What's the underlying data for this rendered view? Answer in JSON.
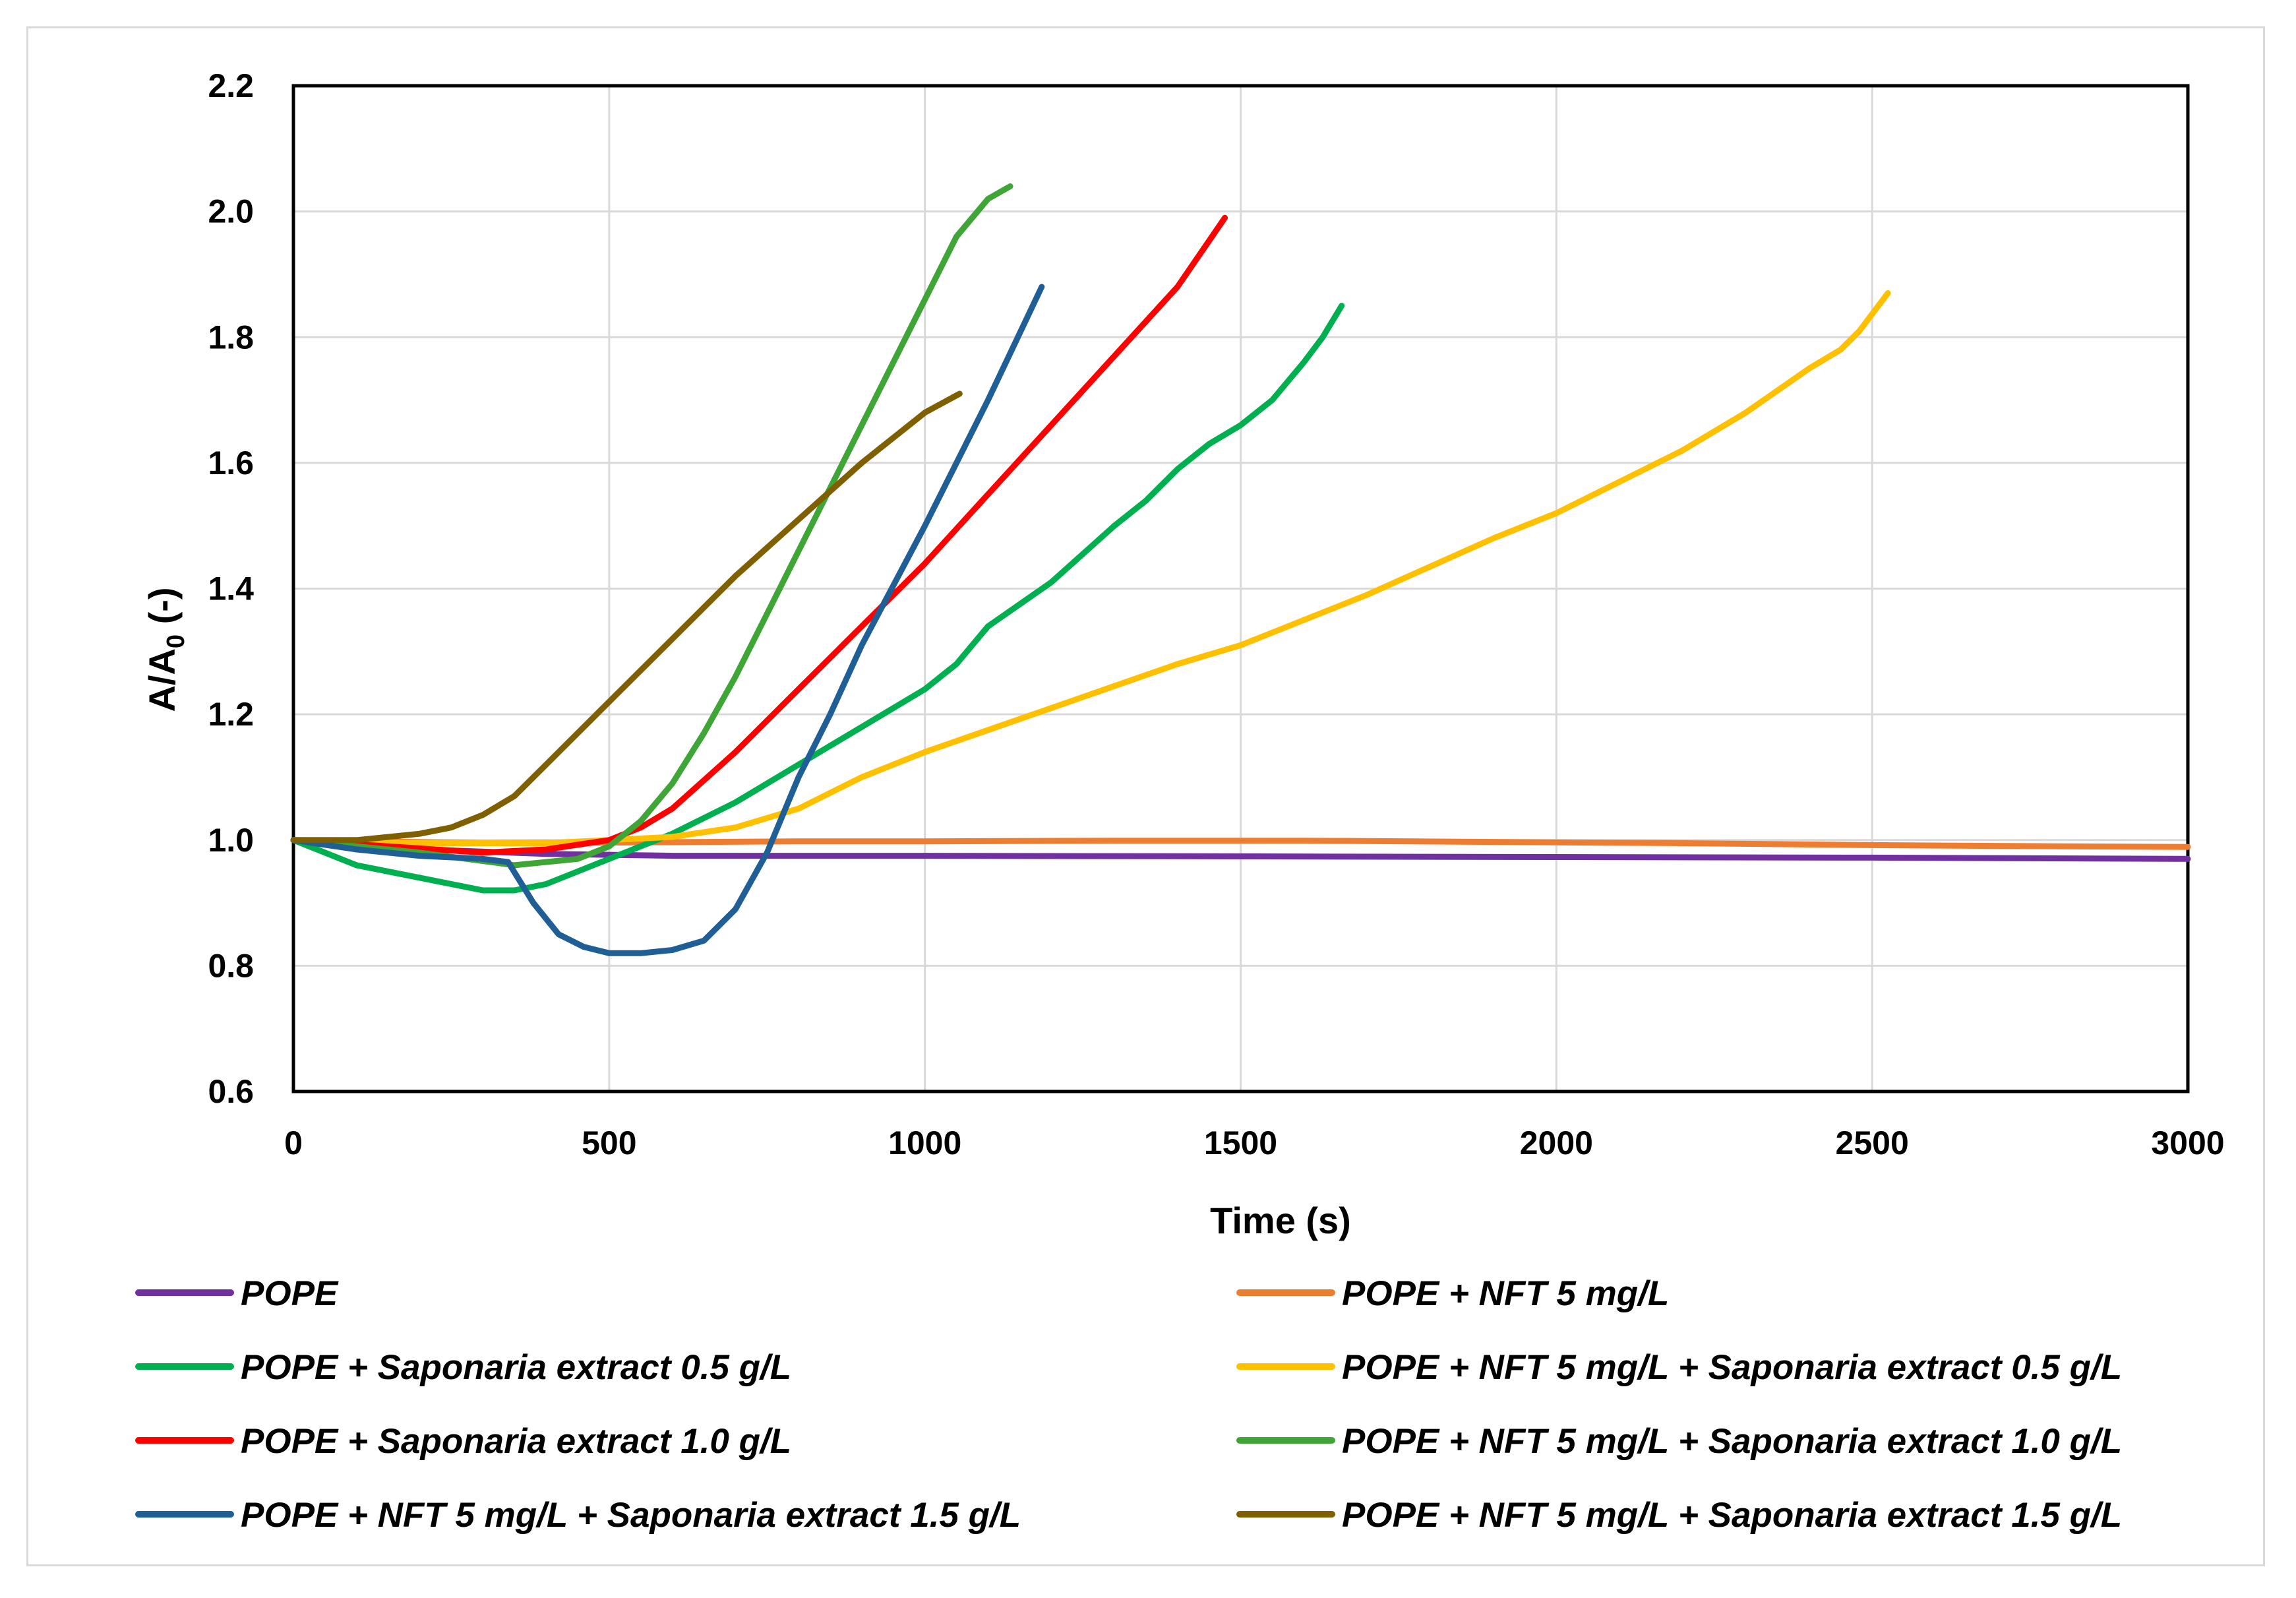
{
  "chart_data": {
    "type": "line",
    "title": "",
    "xlabel": "Time (s)",
    "ylabel_main": "A/A",
    "ylabel_sub": "0",
    "ylabel_suffix": " (-)",
    "xlim": [
      0,
      3000
    ],
    "ylim": [
      0.6,
      2.2
    ],
    "xticks": [
      0,
      500,
      1000,
      1500,
      2000,
      2500,
      3000
    ],
    "xtick_labels": [
      "0",
      "500",
      "1000",
      "1500",
      "2000",
      "2500",
      "3000"
    ],
    "yticks": [
      0.6,
      0.8,
      1.0,
      1.2,
      1.4,
      1.6,
      1.8,
      2.0,
      2.2
    ],
    "ytick_labels": [
      "0.6",
      "0.8",
      "1.0",
      "1.2",
      "1.4",
      "1.6",
      "1.8",
      "2.0",
      "2.2"
    ],
    "grid": true,
    "legend_position": "bottom",
    "series": [
      {
        "name": "POPE",
        "color": "#7030A0",
        "x": [
          0,
          200,
          400,
          600,
          1000,
          1500,
          2000,
          2500,
          3000
        ],
        "y": [
          1.0,
          0.985,
          0.978,
          0.975,
          0.975,
          0.974,
          0.973,
          0.972,
          0.97
        ]
      },
      {
        "name": "POPE + NFT 5 mg/L",
        "color": "#ED7D31",
        "x": [
          0,
          300,
          500,
          800,
          1000,
          1300,
          1600,
          1900,
          2200,
          2500,
          2800,
          3000
        ],
        "y": [
          1.0,
          0.995,
          0.996,
          0.998,
          0.998,
          0.999,
          0.999,
          0.997,
          0.995,
          0.992,
          0.99,
          0.989
        ]
      },
      {
        "name": "POPE + Saponaria extract 0.5 g/L",
        "color": "#00B050",
        "x": [
          0,
          100,
          200,
          300,
          350,
          400,
          500,
          600,
          700,
          800,
          900,
          1000,
          1050,
          1100,
          1200,
          1300,
          1350,
          1400,
          1450,
          1500,
          1550,
          1600,
          1630,
          1660
        ],
        "y": [
          1.0,
          0.96,
          0.94,
          0.92,
          0.92,
          0.93,
          0.97,
          1.01,
          1.06,
          1.12,
          1.18,
          1.24,
          1.28,
          1.34,
          1.41,
          1.5,
          1.54,
          1.59,
          1.63,
          1.66,
          1.7,
          1.76,
          1.8,
          1.85
        ]
      },
      {
        "name": "POPE + NFT 5 mg/L + Saponaria extract 0.5 g/L",
        "color": "#FFC000",
        "x": [
          0,
          200,
          400,
          600,
          700,
          800,
          900,
          1000,
          1200,
          1400,
          1500,
          1700,
          1900,
          2000,
          2100,
          2200,
          2300,
          2400,
          2450,
          2480,
          2525
        ],
        "y": [
          1.0,
          0.995,
          0.995,
          1.005,
          1.02,
          1.05,
          1.1,
          1.14,
          1.21,
          1.28,
          1.31,
          1.39,
          1.48,
          1.52,
          1.57,
          1.62,
          1.68,
          1.75,
          1.78,
          1.81,
          1.87
        ]
      },
      {
        "name": "POPE + Saponaria extract 1.0 g/L",
        "color": "#FF0000",
        "x": [
          0,
          300,
          400,
          500,
          550,
          600,
          700,
          800,
          900,
          1000,
          1100,
          1200,
          1300,
          1400,
          1475
        ],
        "y": [
          1.0,
          0.98,
          0.985,
          1.0,
          1.02,
          1.05,
          1.14,
          1.24,
          1.34,
          1.44,
          1.55,
          1.66,
          1.77,
          1.88,
          1.99
        ]
      },
      {
        "name": "POPE + NFT 5 mg/L + Saponaria extract 1.0 g/L",
        "color": "#3FA536",
        "x": [
          0,
          200,
          350,
          450,
          500,
          550,
          600,
          650,
          700,
          750,
          800,
          850,
          900,
          950,
          1000,
          1050,
          1100,
          1135
        ],
        "y": [
          1.0,
          0.98,
          0.96,
          0.97,
          0.99,
          1.03,
          1.09,
          1.17,
          1.26,
          1.36,
          1.46,
          1.56,
          1.66,
          1.76,
          1.86,
          1.96,
          2.02,
          2.04
        ]
      },
      {
        "name": "POPE + NFT 5 mg/L + Saponaria extract 1.5 g/L",
        "color": "#1F5F96",
        "x": [
          0,
          100,
          200,
          300,
          340,
          380,
          420,
          460,
          500,
          550,
          600,
          650,
          700,
          750,
          800,
          850,
          900,
          1000,
          1100,
          1185
        ],
        "y": [
          1.0,
          0.985,
          0.975,
          0.97,
          0.965,
          0.9,
          0.85,
          0.83,
          0.82,
          0.82,
          0.825,
          0.84,
          0.89,
          0.98,
          1.1,
          1.2,
          1.31,
          1.5,
          1.7,
          1.88
        ]
      },
      {
        "name": "POPE + NFT 5 mg/L + Saponaria extract 1.5 g/L",
        "color": "#7F6000",
        "x": [
          0,
          100,
          200,
          250,
          300,
          350,
          400,
          450,
          500,
          600,
          700,
          800,
          900,
          1000,
          1055
        ],
        "y": [
          1.0,
          1.0,
          1.01,
          1.02,
          1.04,
          1.07,
          1.12,
          1.17,
          1.22,
          1.32,
          1.42,
          1.51,
          1.6,
          1.68,
          1.71
        ]
      }
    ]
  }
}
